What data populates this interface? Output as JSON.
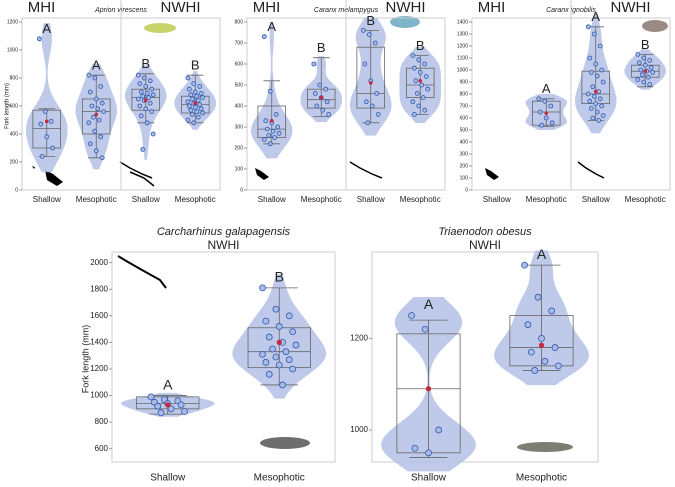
{
  "chart_data": [
    {
      "type": "violin",
      "title": "Aprion virescens",
      "y_label": "Fork length (mm)",
      "ylim": [
        0,
        1200
      ],
      "yticks": [
        0,
        200,
        400,
        600,
        800,
        1000,
        1200
      ],
      "regions": [
        {
          "name": "MHI",
          "groups": [
            {
              "category": "Shallow",
              "letter": "A",
              "stats": [
                240,
                300,
                440,
                570,
                580
              ],
              "mean": 490,
              "points": [
                1080,
                560,
                490,
                470,
                380,
                300,
                240
              ]
            },
            {
              "category": "Mesophotic",
              "letter": "A",
              "stats": [
                230,
                400,
                560,
                650,
                820
              ],
              "mean": 540,
              "points": [
                820,
                800,
                740,
                700,
                650,
                620,
                600,
                580,
                560,
                520,
                500,
                480,
                420,
                380,
                330,
                280,
                230
              ]
            }
          ]
        },
        {
          "name": "NWHI",
          "groups": [
            {
              "category": "Shallow",
              "letter": "B",
              "stats": [
                480,
                570,
                660,
                720,
                830
              ],
              "mean": 640,
              "points": [
                820,
                800,
                780,
                760,
                740,
                720,
                700,
                690,
                680,
                670,
                660,
                650,
                640,
                620,
                600,
                580,
                560,
                530,
                480,
                400,
                290
              ]
            },
            {
              "category": "Mesophotic",
              "letter": "B",
              "stats": [
                480,
                550,
                610,
                670,
                820
              ],
              "mean": 620,
              "points": [
                800,
                760,
                740,
                720,
                700,
                690,
                680,
                670,
                660,
                650,
                640,
                630,
                620,
                610,
                600,
                590,
                580,
                570,
                560,
                550,
                540,
                520,
                500,
                480
              ]
            }
          ]
        }
      ]
    },
    {
      "type": "violin",
      "title": "Caranx melampygus",
      "ylim": [
        0,
        800
      ],
      "yticks": [
        0,
        100,
        200,
        300,
        400,
        500,
        600,
        700,
        800
      ],
      "regions": [
        {
          "name": "MHI",
          "groups": [
            {
              "category": "Shallow",
              "letter": "A",
              "stats": [
                220,
                250,
                290,
                400,
                520
              ],
              "mean": 330,
              "points": [
                730,
                470,
                360,
                330,
                320,
                300,
                290,
                280,
                270,
                260,
                250,
                240,
                220
              ]
            },
            {
              "category": "Mesophotic",
              "letter": "B",
              "stats": [
                350,
                390,
                430,
                480,
                630
              ],
              "mean": 440,
              "points": [
                600,
                500,
                480,
                460,
                440,
                420,
                400,
                380,
                360
              ]
            }
          ]
        },
        {
          "name": "NWHI",
          "groups": [
            {
              "category": "Shallow",
              "letter": "B",
              "stats": [
                320,
                390,
                460,
                680,
                760
              ],
              "mean": 510,
              "points": [
                760,
                740,
                700,
                600,
                520,
                460,
                420,
                400,
                360,
                320
              ]
            },
            {
              "category": "Mesophotic",
              "letter": "B",
              "stats": [
                360,
                440,
                500,
                580,
                640
              ],
              "mean": 520,
              "points": [
                640,
                620,
                600,
                580,
                560,
                540,
                520,
                500,
                480,
                460,
                440,
                420,
                400,
                380,
                360
              ]
            }
          ]
        }
      ]
    },
    {
      "type": "violin",
      "title": "Caranx ignobilis",
      "ylim": [
        0,
        1400
      ],
      "yticks": [
        0,
        100,
        200,
        300,
        400,
        500,
        600,
        700,
        800,
        900,
        1000,
        1100,
        1200,
        1300,
        1400
      ],
      "regions": [
        {
          "name": "MHI",
          "groups": [
            {
              "category": "Shallow",
              "stats": null,
              "mean": null,
              "points": []
            },
            {
              "category": "Mesophotic",
              "letter": "A",
              "stats": [
                530,
                540,
                650,
                740,
                760
              ],
              "mean": 640,
              "points": [
                760,
                740,
                700,
                650,
                600,
                560,
                540
              ]
            }
          ]
        },
        {
          "name": "NWHI",
          "groups": [
            {
              "category": "Shallow",
              "letter": "A",
              "stats": [
                580,
                720,
                800,
                990,
                1360
              ],
              "mean": 820,
              "points": [
                1360,
                1300,
                1200,
                1100,
                1050,
                1000,
                980,
                950,
                900,
                860,
                820,
                800,
                780,
                760,
                740,
                720,
                700,
                680,
                650,
                620,
                600,
                580
              ]
            },
            {
              "category": "Mesophotic",
              "letter": "B",
              "stats": [
                860,
                940,
                990,
                1040,
                1130
              ],
              "mean": 990,
              "points": [
                1130,
                1100,
                1080,
                1060,
                1040,
                1020,
                1000,
                990,
                980,
                960,
                940,
                920,
                900,
                880
              ]
            }
          ]
        }
      ]
    },
    {
      "type": "violin",
      "title": "Carcharhinus galapagensis",
      "y_label": "Fork length (mm)",
      "ylim": [
        500,
        2050
      ],
      "yticks": [
        600,
        800,
        1000,
        1200,
        1400,
        1600,
        1800,
        2000
      ],
      "regions": [
        {
          "name": "NWHI",
          "groups": [
            {
              "category": "Shallow",
              "letter": "A",
              "stats": [
                860,
                900,
                940,
                990,
                1000
              ],
              "mean": 930,
              "points": [
                990,
                970,
                960,
                950,
                940,
                930,
                920,
                900,
                880,
                870
              ]
            },
            {
              "category": "Mesophotic",
              "letter": "B",
              "stats": [
                1080,
                1210,
                1330,
                1510,
                1810
              ],
              "mean": 1400,
              "points": [
                1810,
                1650,
                1600,
                1560,
                1520,
                1480,
                1440,
                1400,
                1380,
                1350,
                1330,
                1310,
                1290,
                1270,
                1250,
                1230,
                1200,
                1160,
                1080
              ]
            }
          ]
        }
      ]
    },
    {
      "type": "violin",
      "title": "Triaenodon obesus",
      "ylim": [
        930,
        1380
      ],
      "yticks": [
        1000,
        1200
      ],
      "regions": [
        {
          "name": "NWHI",
          "groups": [
            {
              "category": "Shallow",
              "letter": "A",
              "stats": [
                940,
                950,
                1090,
                1210,
                1240
              ],
              "mean": 1090,
              "points": [
                1250,
                1220,
                1000,
                960,
                950
              ]
            },
            {
              "category": "Mesophotic",
              "letter": "A",
              "stats": [
                1130,
                1140,
                1180,
                1250,
                1360
              ],
              "mean": 1185,
              "points": [
                1360,
                1290,
                1260,
                1230,
                1200,
                1180,
                1170,
                1150,
                1140,
                1130
              ]
            }
          ]
        }
      ]
    }
  ]
}
